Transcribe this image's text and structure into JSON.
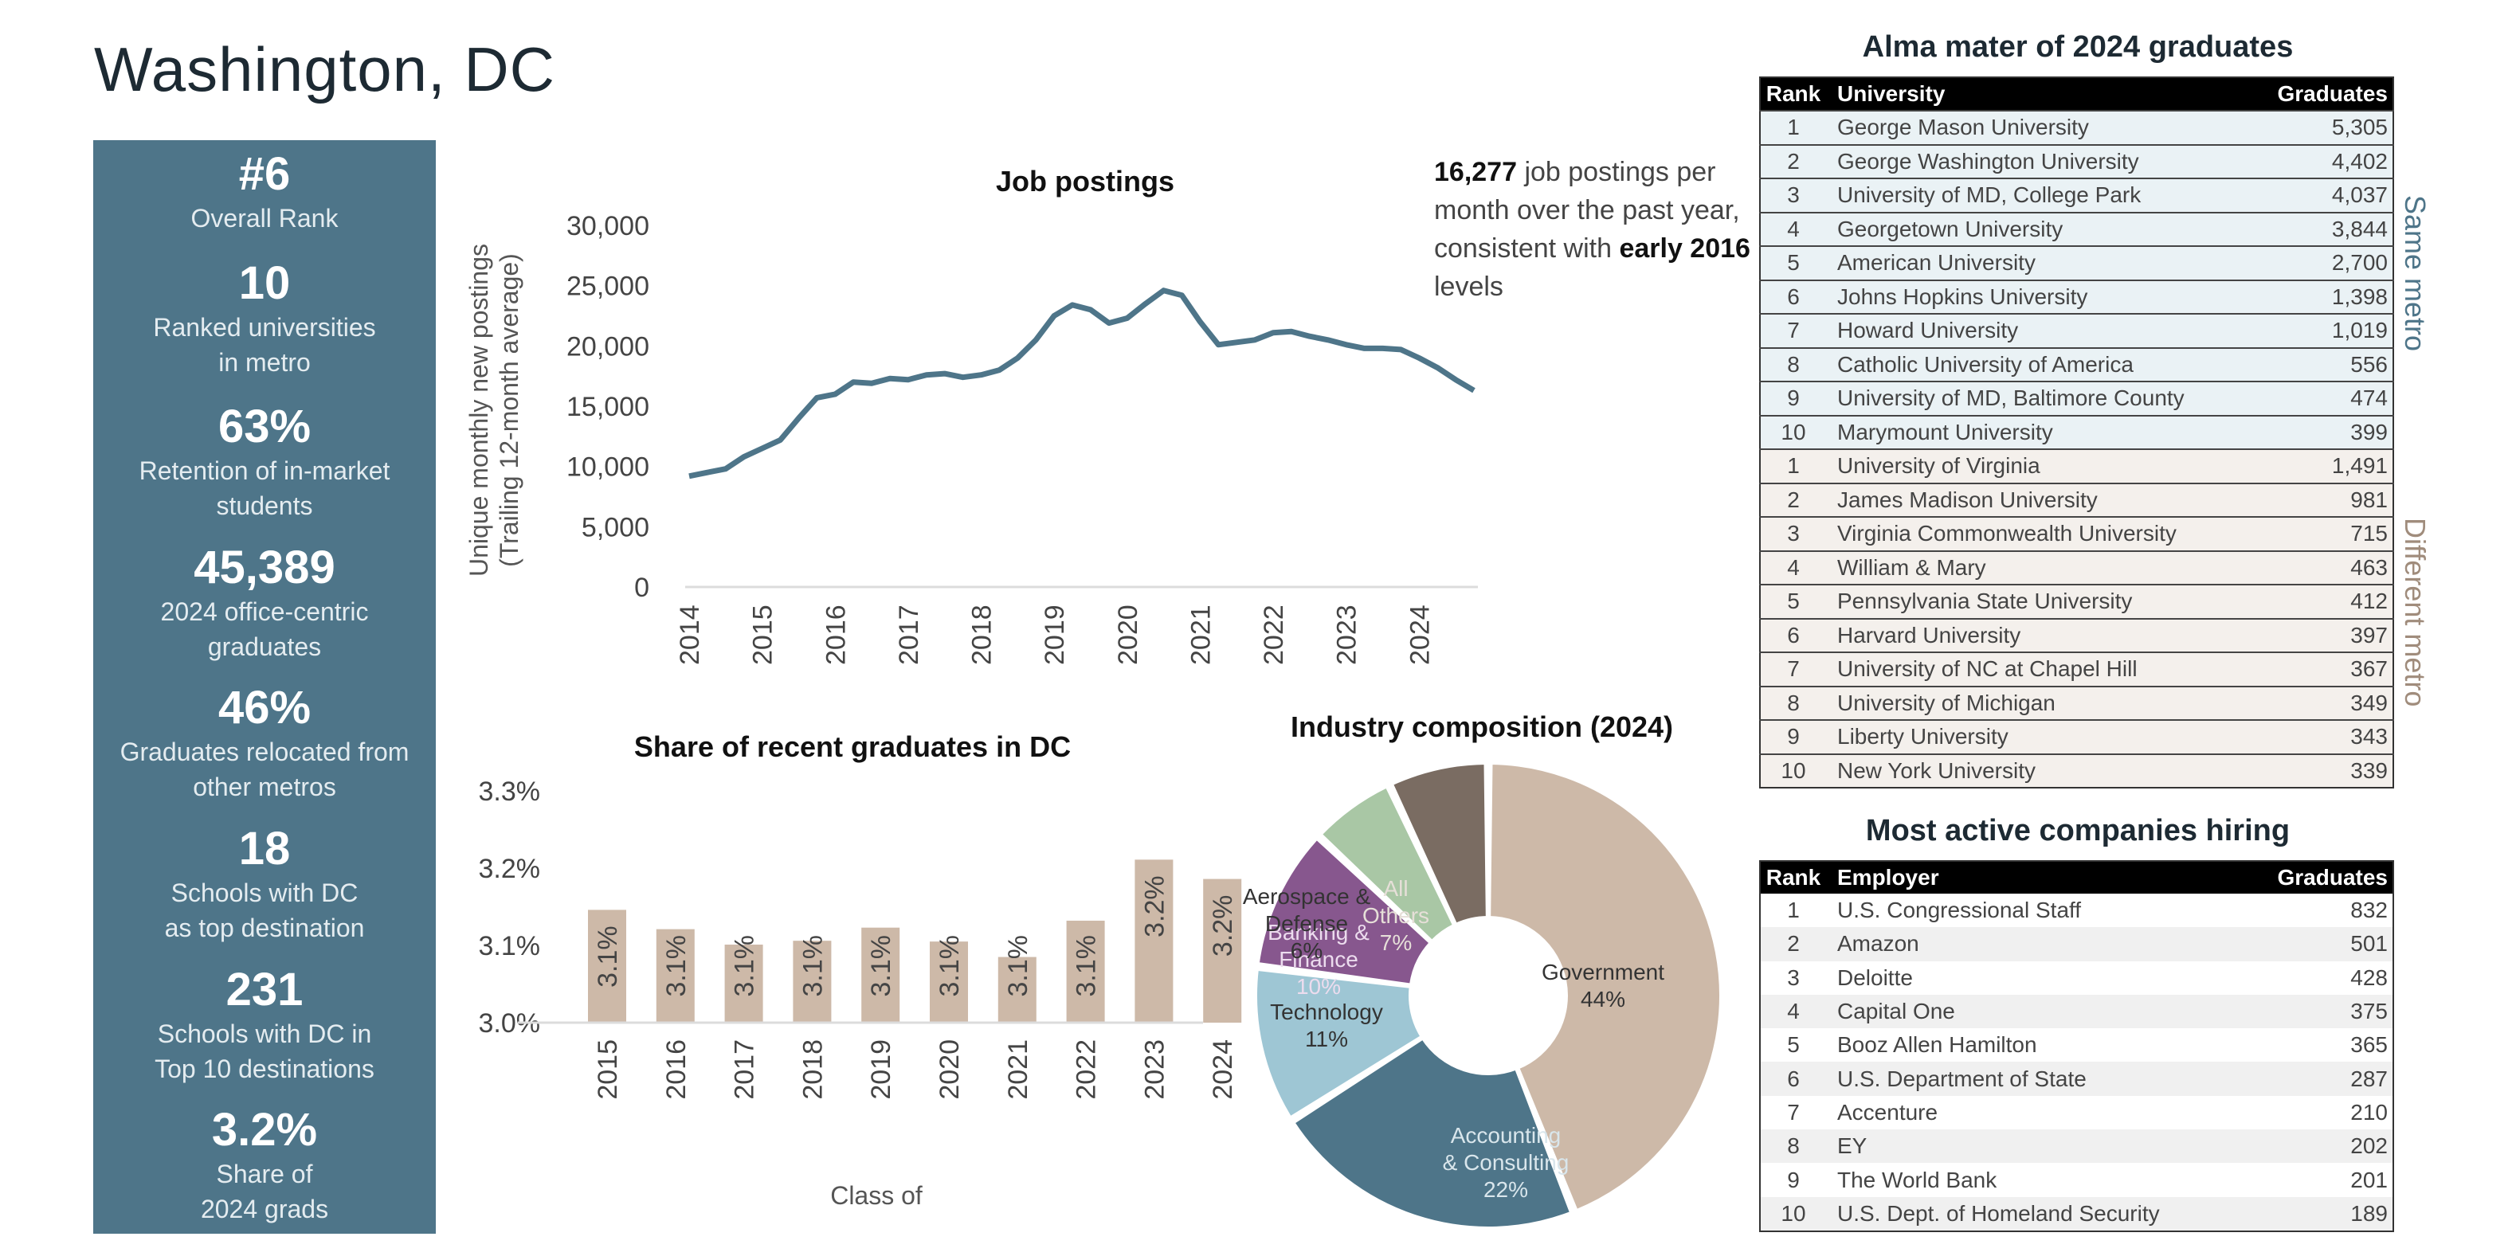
{
  "page": {
    "title": "Washington, DC"
  },
  "kpis": [
    {
      "value": "#6",
      "label": "Overall Rank"
    },
    {
      "value": "10",
      "label": "Ranked universities in metro"
    },
    {
      "value": "63%",
      "label": "Retention of in-market students"
    },
    {
      "value": "45,389",
      "label": "2024 office-centric graduates"
    },
    {
      "value": "46%",
      "label": "Graduates relocated from other metros"
    },
    {
      "value": "18",
      "label": "Schools with DC as top destination"
    },
    {
      "value": "231",
      "label": "Schools with DC in Top 10 destinations"
    },
    {
      "value": "3.2%",
      "label": "Share of 2024 grads"
    }
  ],
  "kpi_label_lines": [
    [
      "Overall Rank"
    ],
    [
      "Ranked universities",
      "in metro"
    ],
    [
      "Retention of in-market",
      "students"
    ],
    [
      "2024 office-centric",
      "graduates"
    ],
    [
      "Graduates relocated from",
      "other metros"
    ],
    [
      "Schools with DC",
      "as top destination"
    ],
    [
      "Schools with DC in",
      "Top 10 destinations"
    ],
    [
      "Share of",
      "2024 grads"
    ]
  ],
  "callout": {
    "number": "16,277",
    "text1": " job postings per month over the past year, consistent with ",
    "emphasis": "early 2016",
    "text2": " levels"
  },
  "colors": {
    "primary": "#4e7589",
    "tan": "#cdb9a8",
    "light_blue": "#9ec6d4",
    "purple": "#87578e",
    "green": "#a9c7a5",
    "brown": "#7a6c62"
  },
  "chart_data": [
    {
      "type": "line",
      "title": "Job postings",
      "xlabel": "",
      "ylabel": "Unique monthly new postings (Trailing 12-month average)",
      "ylabel_lines": [
        "Unique monthly new postings",
        "(Trailing 12-month average)"
      ],
      "ylim": [
        0,
        30000
      ],
      "yticks": [
        0,
        5000,
        10000,
        15000,
        20000,
        25000,
        30000
      ],
      "ytick_labels": [
        "0",
        "5,000",
        "10,000",
        "15,000",
        "20,000",
        "25,000",
        "30,000"
      ],
      "xticks": [
        "2014",
        "2015",
        "2016",
        "2017",
        "2018",
        "2019",
        "2020",
        "2021",
        "2022",
        "2023",
        "2024"
      ],
      "xlim": [
        2014,
        2024.75
      ],
      "grid": false,
      "series": [
        {
          "name": "Job postings",
          "x": [
            2014.0,
            2014.25,
            2014.5,
            2014.75,
            2015.0,
            2015.25,
            2015.5,
            2015.75,
            2016.0,
            2016.25,
            2016.5,
            2016.75,
            2017.0,
            2017.25,
            2017.5,
            2017.75,
            2018.0,
            2018.25,
            2018.5,
            2018.75,
            2019.0,
            2019.25,
            2019.5,
            2019.75,
            2020.0,
            2020.25,
            2020.5,
            2020.75,
            2021.0,
            2021.25,
            2021.5,
            2021.75,
            2022.0,
            2022.25,
            2022.5,
            2022.75,
            2023.0,
            2023.25,
            2023.5,
            2023.75,
            2024.0,
            2024.25,
            2024.5,
            2024.75
          ],
          "values": [
            9200,
            9500,
            9800,
            10800,
            11500,
            12200,
            14000,
            15700,
            16000,
            17000,
            16900,
            17300,
            17200,
            17600,
            17700,
            17400,
            17600,
            18000,
            19000,
            20500,
            22500,
            23400,
            23000,
            21900,
            22300,
            23500,
            24600,
            24200,
            22000,
            20100,
            20300,
            20500,
            21100,
            21200,
            20800,
            20500,
            20100,
            19800,
            19800,
            19700,
            19000,
            18200,
            17200,
            16300
          ]
        }
      ]
    },
    {
      "type": "bar",
      "title": "Share of recent graduates in DC",
      "xlabel": "Class of",
      "ylabel": "",
      "categories": [
        "2015",
        "2016",
        "2017",
        "2018",
        "2019",
        "2020",
        "2021",
        "2022",
        "2023",
        "2024"
      ],
      "values": [
        3.146,
        3.121,
        3.101,
        3.106,
        3.123,
        3.105,
        3.085,
        3.132,
        3.211,
        3.186
      ],
      "data_labels": [
        "3.1%",
        "3.1%",
        "3.1%",
        "3.1%",
        "3.1%",
        "3.1%",
        "3.1%",
        "3.1%",
        "3.2%",
        "3.2%"
      ],
      "ylim": [
        3.0,
        3.3
      ],
      "yticks": [
        3.0,
        3.1,
        3.2,
        3.3
      ],
      "ytick_labels": [
        "3.0%",
        "3.1%",
        "3.2%",
        "3.3%"
      ],
      "grid": false
    },
    {
      "type": "pie",
      "title": "Industry composition (2024)",
      "donut": true,
      "slices": [
        {
          "label": "Government",
          "value": 44,
          "pct": "44%",
          "color": "#cdb9a8",
          "label_color": "#333333"
        },
        {
          "label": "Accounting & Consulting",
          "value": 22,
          "pct": "22%",
          "color": "#4e7589",
          "label_color": "#d9e6ec"
        },
        {
          "label": "Technology",
          "value": 11,
          "pct": "11%",
          "color": "#9ec6d4",
          "label_color": "#333333"
        },
        {
          "label": "Banking & Finance",
          "value": 10,
          "pct": "10%",
          "color": "#87578e",
          "label_color": "#ecdcee"
        },
        {
          "label": "Aerospace & Defense",
          "value": 6,
          "pct": "6%",
          "color": "#a9c7a5",
          "label_color": "#333333"
        },
        {
          "label": "All Others",
          "value": 7,
          "pct": "7%",
          "color": "#7a6c62",
          "label_color": "#e6dfd8"
        }
      ]
    }
  ],
  "alma_table": {
    "title": "Alma mater of 2024 graduates",
    "headers": [
      "Rank",
      "University",
      "Graduates"
    ],
    "same_metro_label": "Same metro",
    "different_metro_label": "Different metro",
    "same_metro": [
      [
        "1",
        "George Mason University",
        "5,305"
      ],
      [
        "2",
        "George Washington University",
        "4,402"
      ],
      [
        "3",
        "University of MD, College Park",
        "4,037"
      ],
      [
        "4",
        "Georgetown University",
        "3,844"
      ],
      [
        "5",
        "American University",
        "2,700"
      ],
      [
        "6",
        "Johns Hopkins University",
        "1,398"
      ],
      [
        "7",
        "Howard University",
        "1,019"
      ],
      [
        "8",
        "Catholic University of America",
        "556"
      ],
      [
        "9",
        "University of MD, Baltimore County",
        "474"
      ],
      [
        "10",
        "Marymount University",
        "399"
      ]
    ],
    "different_metro": [
      [
        "1",
        "University of Virginia",
        "1,491"
      ],
      [
        "2",
        "James Madison University",
        "981"
      ],
      [
        "3",
        "Virginia Commonwealth University",
        "715"
      ],
      [
        "4",
        "William & Mary",
        "463"
      ],
      [
        "5",
        "Pennsylvania State University",
        "412"
      ],
      [
        "6",
        "Harvard University",
        "397"
      ],
      [
        "7",
        "University of NC at Chapel Hill",
        "367"
      ],
      [
        "8",
        "University of Michigan",
        "349"
      ],
      [
        "9",
        "Liberty University",
        "343"
      ],
      [
        "10",
        "New York University",
        "339"
      ]
    ]
  },
  "hiring_table": {
    "title": "Most active companies hiring",
    "headers": [
      "Rank",
      "Employer",
      "Graduates"
    ],
    "rows": [
      [
        "1",
        "U.S. Congressional Staff",
        "832"
      ],
      [
        "2",
        "Amazon",
        "501"
      ],
      [
        "3",
        "Deloitte",
        "428"
      ],
      [
        "4",
        "Capital One",
        "375"
      ],
      [
        "5",
        "Booz Allen Hamilton",
        "365"
      ],
      [
        "6",
        "U.S. Department of State",
        "287"
      ],
      [
        "7",
        "Accenture",
        "210"
      ],
      [
        "8",
        "EY",
        "202"
      ],
      [
        "9",
        "The World Bank",
        "201"
      ],
      [
        "10",
        "U.S. Dept. of Homeland Security",
        "189"
      ]
    ]
  }
}
